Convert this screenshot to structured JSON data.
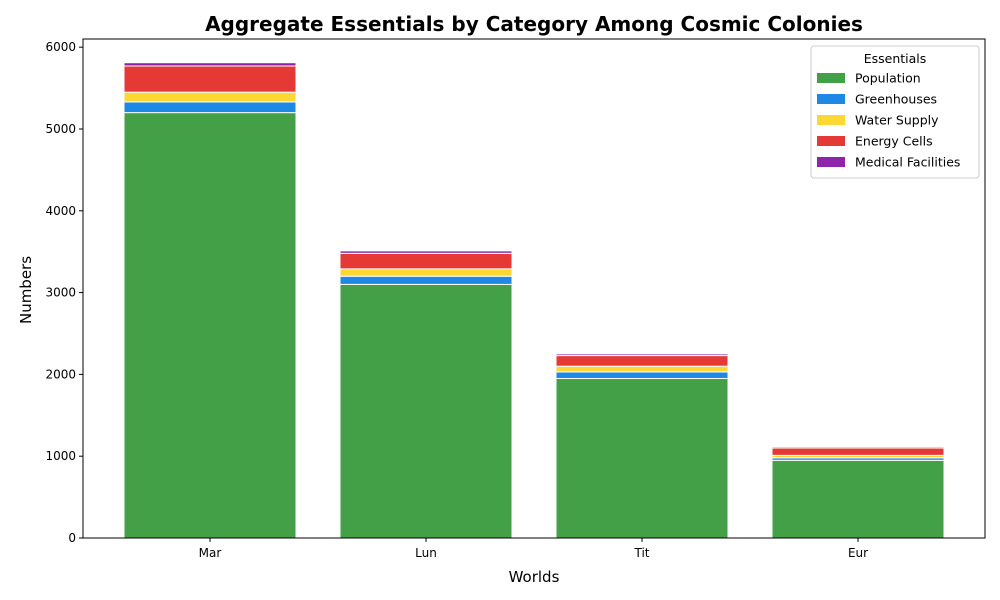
{
  "chart_data": {
    "type": "bar",
    "stacked": true,
    "title": "Aggregate Essentials by Category Among Cosmic Colonies",
    "xlabel": "Worlds",
    "ylabel": "Numbers",
    "categories": [
      "Mar",
      "Lun",
      "Tit",
      "Eur"
    ],
    "ylim": [
      0,
      6100
    ],
    "yticks": [
      0,
      1000,
      2000,
      3000,
      4000,
      5000,
      6000
    ],
    "grid": false,
    "legend": {
      "title": "Essentials",
      "placement": "top-right"
    },
    "series": [
      {
        "name": "Population",
        "color": "#43a047",
        "values": [
          5200,
          3100,
          1950,
          950
        ]
      },
      {
        "name": "Greenhouses",
        "color": "#1e88e5",
        "values": [
          130,
          100,
          80,
          30
        ]
      },
      {
        "name": "Water Supply",
        "color": "#fdd835",
        "values": [
          120,
          90,
          70,
          30
        ]
      },
      {
        "name": "Energy Cells",
        "color": "#e53935",
        "values": [
          320,
          190,
          130,
          90
        ]
      },
      {
        "name": "Medical Facilities",
        "color": "#8e24aa",
        "values": [
          40,
          30,
          20,
          15
        ]
      }
    ]
  }
}
